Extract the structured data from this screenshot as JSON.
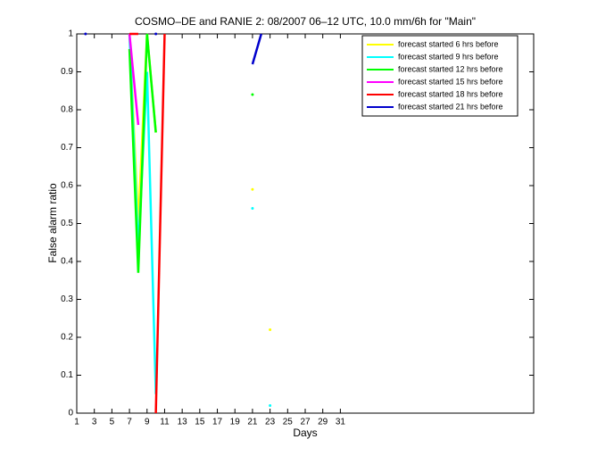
{
  "chart_data": {
    "type": "line",
    "title": "COSMO–DE and RANIE 2: 08/2007 06–12 UTC, 10.0 mm/6h for \"Main\"",
    "x_label": "Days",
    "y_label": "False alarm ratio",
    "x": [
      1,
      2,
      3,
      4,
      5,
      6,
      7,
      8,
      9,
      10,
      11,
      12,
      13,
      14,
      15,
      16,
      17,
      18,
      19,
      20,
      21,
      22,
      23,
      24,
      25,
      26,
      27,
      28,
      29,
      30,
      31
    ],
    "series": [
      {
        "name": "forecast started 6 hrs before",
        "color": "#ffff00",
        "values": [
          null,
          null,
          null,
          null,
          null,
          null,
          1,
          0.5,
          1,
          0.74,
          null,
          null,
          null,
          null,
          null,
          null,
          null,
          null,
          null,
          null,
          0.59,
          null,
          0.22,
          null,
          null,
          null,
          null,
          null,
          null,
          null,
          null
        ]
      },
      {
        "name": "forecast started 9 hrs before",
        "color": "#00ffff",
        "values": [
          null,
          null,
          null,
          null,
          null,
          null,
          1,
          0.43,
          0.9,
          0.05,
          null,
          null,
          null,
          null,
          null,
          null,
          null,
          null,
          null,
          null,
          0.54,
          null,
          0.02,
          null,
          null,
          null,
          null,
          null,
          null,
          null,
          null
        ]
      },
      {
        "name": "forecast started 12 hrs before",
        "color": "#00ff00",
        "values": [
          null,
          null,
          null,
          null,
          null,
          null,
          0.96,
          0.37,
          1,
          0.74,
          null,
          null,
          null,
          null,
          null,
          null,
          null,
          null,
          null,
          null,
          0.84,
          null,
          null,
          null,
          null,
          null,
          null,
          null,
          null,
          null,
          null
        ]
      },
      {
        "name": "forecast started 15 hrs before",
        "color": "#ff00ff",
        "values": [
          null,
          null,
          null,
          null,
          null,
          null,
          1,
          0.76,
          null,
          null,
          null,
          null,
          null,
          null,
          null,
          null,
          null,
          null,
          null,
          null,
          null,
          null,
          null,
          null,
          null,
          null,
          null,
          null,
          null,
          null,
          null
        ]
      },
      {
        "name": "forecast started 18 hrs before",
        "color": "#ff0000",
        "values": [
          null,
          null,
          null,
          null,
          null,
          null,
          1,
          1,
          null,
          0,
          1,
          null,
          null,
          null,
          null,
          null,
          null,
          null,
          null,
          null,
          null,
          null,
          null,
          null,
          null,
          null,
          null,
          null,
          null,
          null,
          null
        ]
      },
      {
        "name": "forecast started 21 hrs before",
        "color": "#0000cc",
        "values": [
          null,
          1,
          null,
          null,
          null,
          null,
          null,
          null,
          null,
          1,
          null,
          null,
          null,
          null,
          null,
          null,
          null,
          null,
          null,
          null,
          0.92,
          1,
          null,
          null,
          null,
          null,
          null,
          null,
          null,
          null,
          null
        ]
      }
    ],
    "xlim": [
      1,
      53
    ],
    "ylim": [
      0,
      1
    ],
    "xticks": [
      1,
      3,
      5,
      7,
      9,
      11,
      13,
      15,
      17,
      19,
      21,
      23,
      25,
      27,
      29,
      31
    ],
    "yticks": [
      0,
      0.1,
      0.2,
      0.3,
      0.4,
      0.5,
      0.6,
      0.7,
      0.8,
      0.9,
      1
    ],
    "legend": "upper right"
  }
}
